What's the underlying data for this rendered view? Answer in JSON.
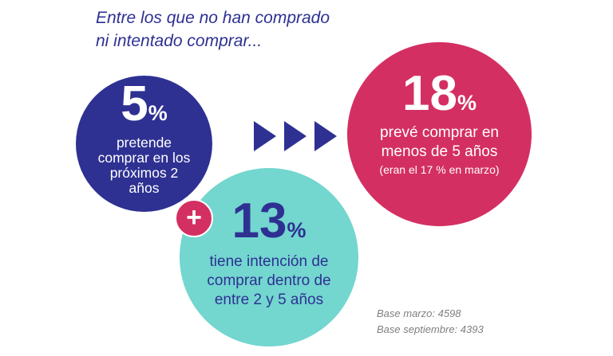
{
  "heading": {
    "line1": "Entre los que no han comprado",
    "line2": "ni intentado comprar..."
  },
  "colors": {
    "dark_blue": "#2e3192",
    "teal": "#73d6cf",
    "crimson": "#d42f62",
    "gray": "#7f7f7f"
  },
  "stats": {
    "short_term": {
      "value": "5",
      "unit": "%",
      "lines": [
        "pretende",
        "comprar en los",
        "próximos 2",
        "años"
      ]
    },
    "mid_term": {
      "value": "13",
      "unit": "%",
      "lines": [
        "tiene intención de",
        "comprar dentro de",
        "entre 2 y 5 años"
      ]
    },
    "total": {
      "value": "18",
      "unit": "%",
      "lines": [
        "prevé comprar en",
        "menos de 5 años"
      ],
      "note": "(eran el 17 % en marzo)"
    }
  },
  "operator": "+",
  "arrows_icon": "triple-right-triangle-icon",
  "base": {
    "march": "Base marzo: 4598",
    "september": "Base septiembre: 4393"
  }
}
